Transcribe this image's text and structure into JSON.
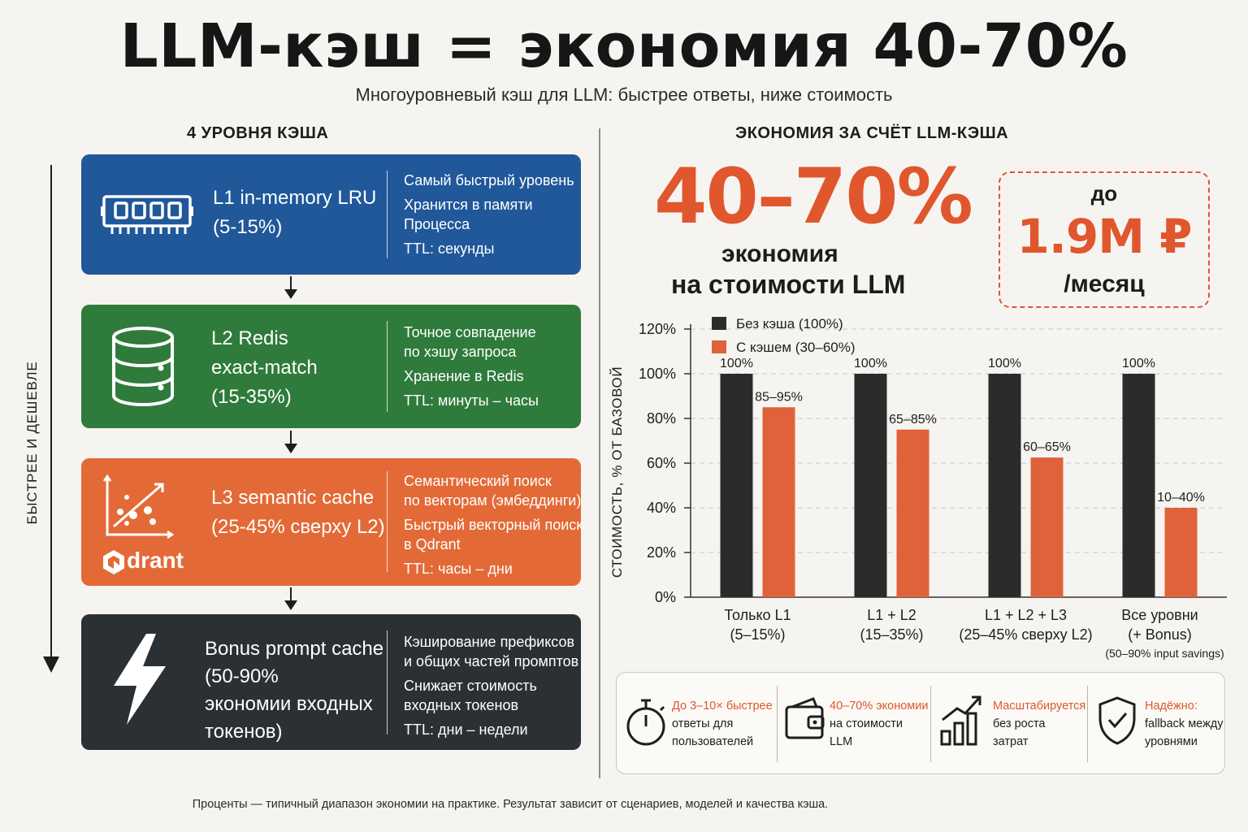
{
  "header": {
    "title": "LLM-кэш = экономия 40-70%",
    "subtitle": "Многоуровневый кэш для LLM: быстрее ответы, ниже стоимость"
  },
  "left": {
    "title": "4 УРОВНЯ КЭША",
    "speed_label": "БЫСТРЕЕ  И ДЕШЕВЛЕ",
    "levels": [
      {
        "title": [
          "L1 in-memory LRU",
          "(5-15%)"
        ],
        "desc": [
          "Самый быстрый уровень",
          "Хранится в памяти",
          "Процесса",
          "TTL: секунды"
        ],
        "color": "#20589a",
        "icon": "memory-chip-icon"
      },
      {
        "title": [
          "L2 Redis",
          "exact-match",
          "(15-35%)"
        ],
        "desc": [
          "Точное совпадение",
          "по хэшу запроса",
          "Хранение в Redis",
          "TTL: минуты – часы"
        ],
        "color": "#2f7b3b",
        "icon": "database-icon"
      },
      {
        "title": [
          "L3 semantic cache",
          "(25-45% сверху L2)"
        ],
        "desc": [
          "Семантический поиск",
          "по векторам (эмбеддинги)",
          "Быстрый векторный поиск",
          "в Qdrant",
          "TTL: часы – дни"
        ],
        "logo": "drant",
        "color": "#e36a37",
        "icon": "scatter-plot-icon"
      },
      {
        "title": [
          "Bonus prompt cache",
          "(50-90%",
          "экономии входных",
          "токенов)"
        ],
        "desc": [
          "Кэширование префиксов",
          "и общих частей промптов",
          "Снижает стоимость",
          "входных токенов",
          "TTL: дни – недели"
        ],
        "color": "#2b3034",
        "icon": "lightning-icon"
      }
    ]
  },
  "right": {
    "title": "ЭКОНОМИЯ ЗА СЧЁТ LLM-КЭША",
    "big_percent": "40–70%",
    "econ_line1": "экономия",
    "econ_line2": "на стоимости LLM",
    "savings": {
      "prefix": "до",
      "amount": "1.9M ₽",
      "period": "/месяц"
    }
  },
  "chart_data": {
    "type": "bar",
    "ylabel": "СТОИМОСТЬ, % ОТ БАЗОВОЙ",
    "ylim": [
      0,
      120
    ],
    "yticks": [
      0,
      20,
      40,
      60,
      80,
      100,
      120
    ],
    "grid": true,
    "legend_position": "top-left",
    "categories": [
      {
        "label": [
          "Только L1",
          "(5–15%)"
        ]
      },
      {
        "label": [
          "L1 + L2",
          "(15–35%)"
        ]
      },
      {
        "label": [
          "L1 + L2 + L3",
          "(25–45% сверху L2)"
        ]
      },
      {
        "label": [
          "Все уровни",
          "(+ Bonus)"
        ],
        "note": "(50–90% input savings)"
      }
    ],
    "series": [
      {
        "name": "Без кэша  (100%)",
        "color": "#2b2b2b",
        "values": [
          100,
          100,
          100,
          100
        ],
        "labels": [
          "100%",
          "100%",
          "100%",
          "100%"
        ]
      },
      {
        "name": "С кэшем (30–60%)",
        "color": "#e0623a",
        "values": [
          85,
          75,
          62.5,
          40
        ],
        "labels": [
          "85–95%",
          "65–85%",
          "60–65%",
          "10–40%"
        ]
      }
    ]
  },
  "benefits": [
    {
      "head": "До 3–10× быстрее",
      "lines": [
        "ответы для",
        "пользователей"
      ],
      "icon": "stopwatch-icon"
    },
    {
      "head": "40–70% экономии",
      "lines": [
        "на стоимости",
        "LLM"
      ],
      "icon": "wallet-icon"
    },
    {
      "head": "Масштабируется",
      "lines": [
        "без роста",
        "затрат"
      ],
      "icon": "growth-chart-icon"
    },
    {
      "head": "Надёжно:",
      "lines": [
        "fallback между",
        "уровнями"
      ],
      "icon": "shield-check-icon"
    }
  ],
  "footnote": "Проценты — типичный диапазон экономии на практике. Результат зависит от сценариев, моделей и качества кэша."
}
